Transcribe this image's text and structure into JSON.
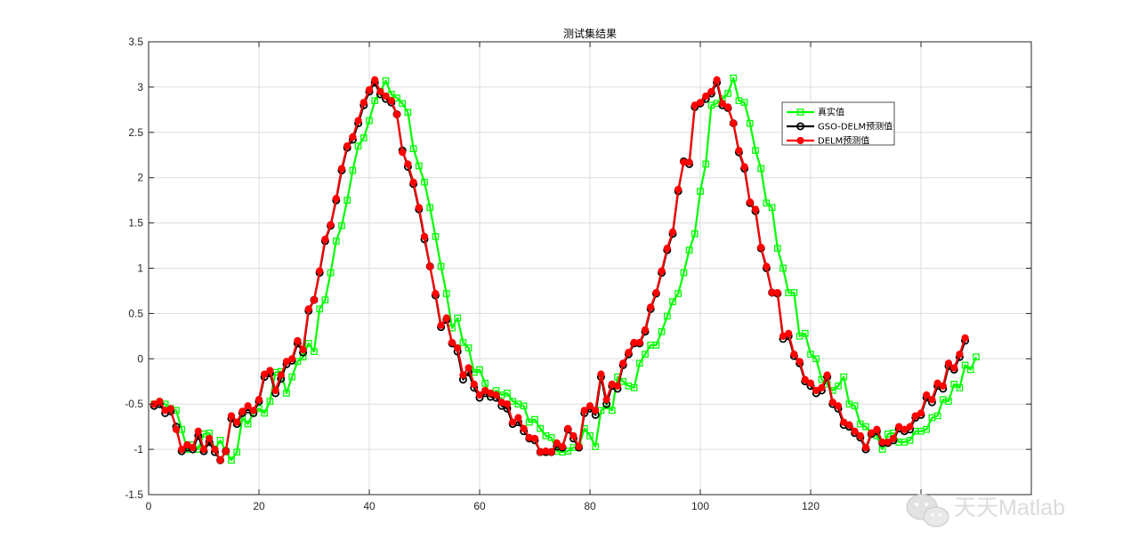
{
  "chart_data": {
    "type": "line",
    "title": "测试集结果",
    "xlabel": "",
    "ylabel": "",
    "xlim": [
      0,
      160
    ],
    "ylim": [
      -1.5,
      3.5
    ],
    "xticks": [
      0,
      20,
      40,
      60,
      80,
      100,
      120,
      140
    ],
    "yticks": [
      -1.5,
      -1,
      -0.5,
      0,
      0.5,
      1,
      1.5,
      2,
      2.5,
      3,
      3.5
    ],
    "grid": true,
    "legend": "upper-right",
    "series": [
      {
        "name": "真实值",
        "color": "#00ff00",
        "marker": "square",
        "values": [
          -0.5,
          -0.48,
          -0.5,
          -0.55,
          -0.57,
          -0.78,
          -1.0,
          -0.95,
          -1.0,
          -0.83,
          -0.82,
          -1.0,
          -0.9,
          -1.02,
          -1.12,
          -1.03,
          -0.65,
          -0.72,
          -0.6,
          -0.55,
          -0.6,
          -0.47,
          -0.15,
          -0.14,
          -0.38,
          -0.2,
          -0.03,
          0.02,
          0.17,
          0.08,
          0.55,
          0.65,
          0.95,
          1.3,
          1.47,
          1.75,
          2.08,
          2.35,
          2.44,
          2.63,
          2.85,
          2.95,
          3.07,
          2.92,
          2.88,
          2.82,
          2.72,
          2.32,
          2.13,
          1.95,
          1.67,
          1.35,
          1.02,
          0.72,
          0.34,
          0.45,
          0.18,
          0.12,
          -0.15,
          -0.12,
          -0.27,
          -0.42,
          -0.35,
          -0.4,
          -0.38,
          -0.47,
          -0.5,
          -0.52,
          -0.7,
          -0.67,
          -0.77,
          -0.85,
          -0.87,
          -1.02,
          -1.03,
          -1.02,
          -0.98,
          -0.97,
          -0.77,
          -0.85,
          -0.97,
          -0.57,
          -0.52,
          -0.57,
          -0.2,
          -0.25,
          -0.3,
          -0.32,
          -0.05,
          0.05,
          0.15,
          0.15,
          0.3,
          0.47,
          0.63,
          0.72,
          0.95,
          1.2,
          1.38,
          1.85,
          2.15,
          2.8,
          2.82,
          2.87,
          2.93,
          3.1,
          2.85,
          2.83,
          2.6,
          2.3,
          2.1,
          1.72,
          1.67,
          1.22,
          1.0,
          0.73,
          0.73,
          0.25,
          0.28,
          0.05,
          0.0,
          -0.23,
          -0.28,
          -0.35,
          -0.3,
          -0.2,
          -0.5,
          -0.52,
          -0.72,
          -0.75,
          -0.83,
          -0.85,
          -1.0,
          -0.83,
          -0.82,
          -0.92,
          -0.92,
          -0.9,
          -0.8,
          -0.8,
          -0.78,
          -0.65,
          -0.63,
          -0.45,
          -0.47,
          -0.28,
          -0.32,
          -0.07,
          -0.12,
          0.02
        ]
      },
      {
        "name": "GSO-DELM预测值",
        "color": "#000000",
        "marker": "circle",
        "values": [
          -0.52,
          -0.5,
          -0.6,
          -0.58,
          -0.75,
          -1.02,
          -0.98,
          -1.0,
          -0.85,
          -1.02,
          -0.92,
          -1.03,
          -1.12,
          -1.02,
          -0.66,
          -0.72,
          -0.6,
          -0.56,
          -0.6,
          -0.47,
          -0.2,
          -0.16,
          -0.38,
          -0.22,
          -0.06,
          -0.02,
          0.17,
          0.07,
          0.53,
          0.65,
          0.95,
          1.3,
          1.47,
          1.75,
          2.08,
          2.33,
          2.42,
          2.6,
          2.8,
          2.95,
          3.05,
          2.92,
          2.87,
          2.83,
          2.7,
          2.3,
          2.12,
          1.93,
          1.65,
          1.32,
          1.02,
          0.7,
          0.35,
          0.43,
          0.17,
          0.08,
          -0.23,
          -0.15,
          -0.32,
          -0.43,
          -0.38,
          -0.42,
          -0.43,
          -0.52,
          -0.55,
          -0.72,
          -0.7,
          -0.8,
          -0.88,
          -0.9,
          -1.03,
          -1.03,
          -1.03,
          -0.97,
          -0.98,
          -0.78,
          -0.88,
          -0.98,
          -0.6,
          -0.55,
          -0.62,
          -0.2,
          -0.5,
          -0.3,
          -0.33,
          -0.07,
          0.05,
          0.17,
          0.17,
          0.3,
          0.55,
          0.72,
          0.95,
          1.2,
          1.38,
          1.85,
          2.18,
          2.15,
          2.78,
          2.82,
          2.87,
          2.93,
          3.05,
          2.8,
          2.77,
          2.6,
          2.28,
          2.1,
          1.72,
          1.63,
          1.22,
          1.0,
          0.73,
          0.72,
          0.22,
          0.25,
          0.03,
          -0.05,
          -0.25,
          -0.3,
          -0.38,
          -0.35,
          -0.2,
          -0.5,
          -0.55,
          -0.73,
          -0.75,
          -0.82,
          -0.87,
          -1.0,
          -0.83,
          -0.8,
          -0.93,
          -0.93,
          -0.9,
          -0.77,
          -0.8,
          -0.78,
          -0.65,
          -0.62,
          -0.43,
          -0.48,
          -0.3,
          -0.33,
          -0.08,
          -0.12,
          0.02,
          0.2
        ]
      },
      {
        "name": "DELM预测值",
        "color": "#ff0000",
        "marker": "circle-filled",
        "values": [
          -0.5,
          -0.47,
          -0.57,
          -0.55,
          -0.78,
          -1.0,
          -0.95,
          -0.98,
          -0.8,
          -1.0,
          -0.88,
          -1.0,
          -1.12,
          -1.02,
          -0.63,
          -0.7,
          -0.58,
          -0.52,
          -0.57,
          -0.45,
          -0.17,
          -0.13,
          -0.35,
          -0.18,
          -0.03,
          0.0,
          0.2,
          0.1,
          0.55,
          0.65,
          0.97,
          1.32,
          1.48,
          1.77,
          2.1,
          2.35,
          2.45,
          2.63,
          2.83,
          2.97,
          3.08,
          2.95,
          2.9,
          2.85,
          2.7,
          2.28,
          2.15,
          1.95,
          1.67,
          1.35,
          1.02,
          0.72,
          0.37,
          0.45,
          0.18,
          0.12,
          -0.18,
          -0.1,
          -0.28,
          -0.4,
          -0.35,
          -0.38,
          -0.4,
          -0.48,
          -0.5,
          -0.7,
          -0.65,
          -0.77,
          -0.87,
          -0.88,
          -1.03,
          -1.02,
          -1.03,
          -0.93,
          -0.97,
          -0.77,
          -0.85,
          -0.97,
          -0.57,
          -0.52,
          -0.57,
          -0.17,
          -0.45,
          -0.28,
          -0.3,
          -0.05,
          0.07,
          0.18,
          0.18,
          0.32,
          0.57,
          0.73,
          0.97,
          1.22,
          1.4,
          1.87,
          2.17,
          2.17,
          2.8,
          2.83,
          2.9,
          2.95,
          3.08,
          2.82,
          2.78,
          2.6,
          2.3,
          2.12,
          1.73,
          1.65,
          1.23,
          1.02,
          0.73,
          0.73,
          0.25,
          0.28,
          0.05,
          -0.03,
          -0.23,
          -0.27,
          -0.35,
          -0.32,
          -0.18,
          -0.48,
          -0.52,
          -0.7,
          -0.73,
          -0.8,
          -0.85,
          -0.98,
          -0.82,
          -0.78,
          -0.92,
          -0.92,
          -0.88,
          -0.75,
          -0.78,
          -0.75,
          -0.63,
          -0.6,
          -0.4,
          -0.45,
          -0.27,
          -0.3,
          -0.05,
          -0.1,
          0.05,
          0.23
        ]
      }
    ]
  },
  "watermark": {
    "text": "天天Matlab",
    "icon": "wechat-icon",
    "color": "#dcdcdc"
  }
}
